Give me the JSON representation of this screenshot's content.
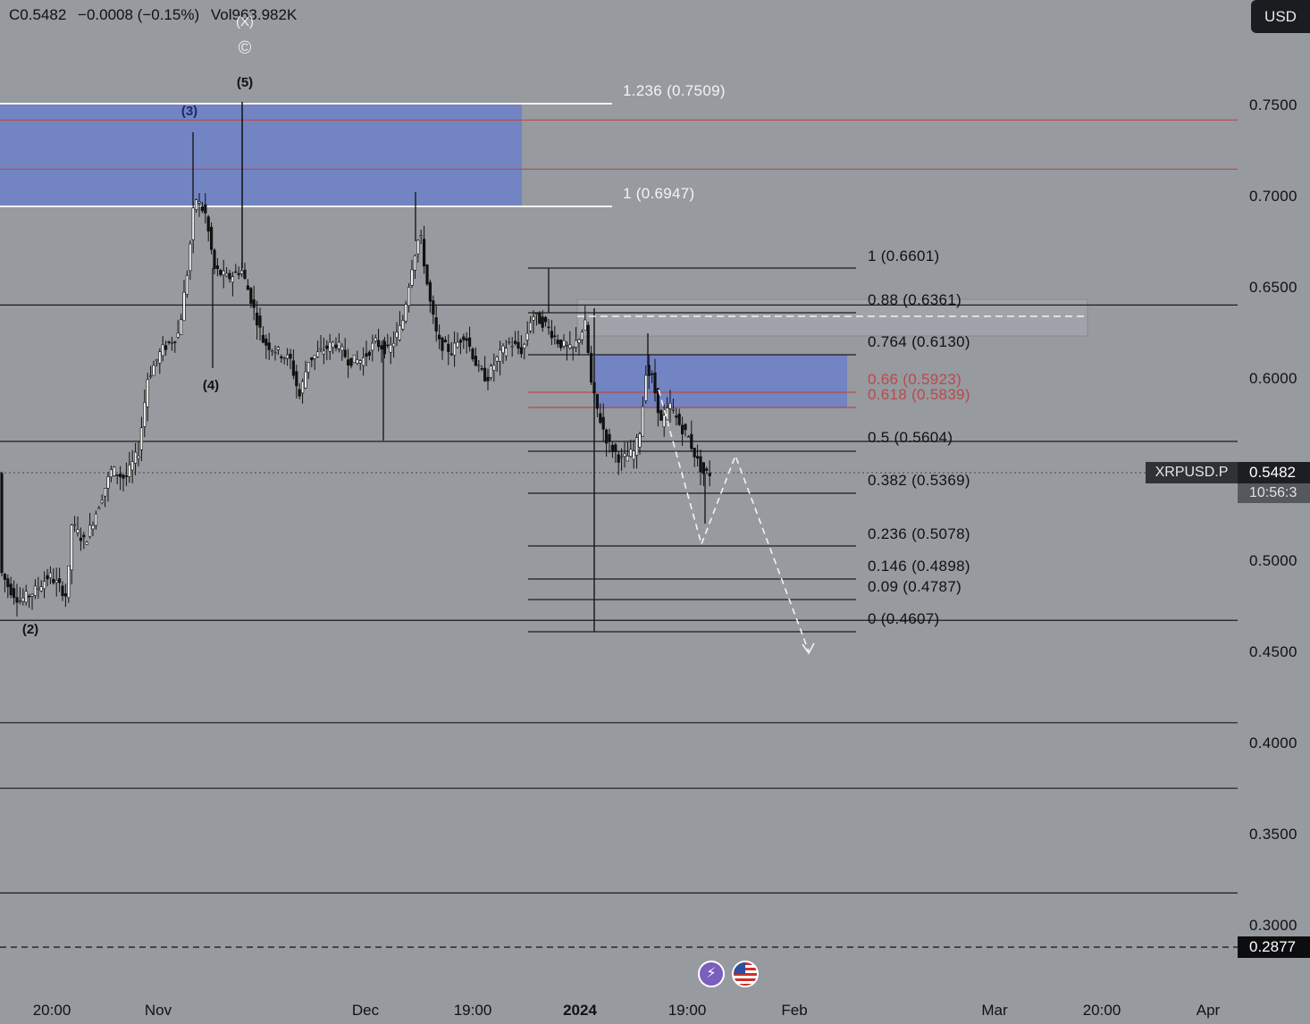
{
  "header": {
    "close": "C0.5482",
    "change": "−0.0008 (−0.15%)",
    "volume": "Vol963.982K"
  },
  "currency_button": "USD",
  "symbol": "XRPUSD.P",
  "last_price": "0.5482",
  "countdown": "10:56:3",
  "low_marker_price": "0.2877",
  "icons": [
    "flash-icon",
    "us-flag-icon"
  ],
  "colors": {
    "background": "#979a9f",
    "zone_fill": "#6b80c8",
    "red_level": "#b84a4a",
    "label_red": "#b84a4a"
  },
  "wave_labels": {
    "w2": "(2)",
    "w3": "(3)",
    "w4": "(4)",
    "w5": "(5)",
    "wx": "(X)",
    "wc": "©"
  },
  "fib_upper": [
    {
      "label": "1.236 (0.7509)"
    },
    {
      "label": "1 (0.6947)"
    }
  ],
  "fib_lower": [
    {
      "label": "1 (0.6601)",
      "red": false
    },
    {
      "label": "0.88 (0.6361)",
      "red": false
    },
    {
      "label": "0.764 (0.6130)",
      "red": false
    },
    {
      "label": "0.66 (0.5923)",
      "red": true
    },
    {
      "label": "0.618 (0.5839)",
      "red": true
    },
    {
      "label": "0.5 (0.5604)",
      "red": false
    },
    {
      "label": "0.382 (0.5369)",
      "red": false
    },
    {
      "label": "0.236 (0.5078)",
      "red": false
    },
    {
      "label": "0.146 (0.4898)",
      "red": false
    },
    {
      "label": "0.09 (0.4787)",
      "red": false
    },
    {
      "label": "0 (0.4607)",
      "red": false
    }
  ],
  "chart_data": {
    "type": "candlestick",
    "symbol": "XRPUSD.P",
    "price_axis": [
      "0.7500",
      "0.7000",
      "0.6500",
      "0.6000",
      "0.5500",
      "0.5000",
      "0.4500",
      "0.4000",
      "0.3500",
      "0.3000"
    ],
    "time_axis": [
      "20:00",
      "Nov",
      "Dec",
      "19:00",
      "2024",
      "19:00",
      "Feb",
      "Mar",
      "20:00",
      "Apr"
    ],
    "y_range": [
      0.28,
      0.78
    ],
    "horizontal_levels": [
      0.6404,
      0.5655,
      0.4672,
      0.411,
      0.375,
      0.3175
    ],
    "red_levels": [
      0.742,
      0.715
    ],
    "last_price": 0.5482,
    "low_marker": 0.2877
  }
}
